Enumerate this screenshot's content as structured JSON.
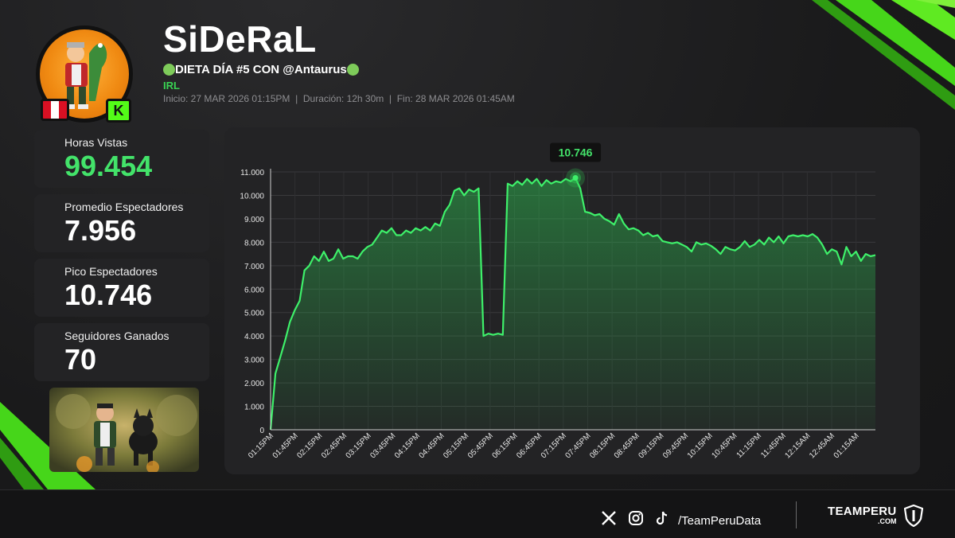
{
  "streamer": {
    "name": "SiDeRaL",
    "title": "DIETA DÍA #5 CON @Antaurus",
    "category": "IRL",
    "meta": "Inicio: 27 MAR 2026 01:15PM  |  Duración: 12h 30m  |  Fin: 28 MAR 2026 01:45AM",
    "flag": "peru-flag",
    "platform_icon": "kick-icon",
    "platform_letter": "K"
  },
  "stats": [
    {
      "label": "Horas Vistas",
      "value": "99.454",
      "highlight": true
    },
    {
      "label": "Promedio Espectadores",
      "value": "7.956",
      "highlight": false
    },
    {
      "label": "Pico Espectadores",
      "value": "10.746",
      "highlight": false
    },
    {
      "label": "Seguidores Ganados",
      "value": "70",
      "highlight": false
    }
  ],
  "colors": {
    "accent": "#43e36a",
    "line": "#3ef06a",
    "panel": "#232325",
    "background": "#1c1c1e",
    "brand_green": "#53fc18"
  },
  "chart_data": {
    "type": "area",
    "title": "",
    "xlabel": "",
    "ylabel": "",
    "ylim": [
      0,
      11000
    ],
    "yticks": [
      0,
      1000,
      2000,
      3000,
      4000,
      5000,
      6000,
      7000,
      8000,
      9000,
      10000,
      11000
    ],
    "ytick_labels": [
      "0",
      "1.000",
      "2.000",
      "3.000",
      "4.000",
      "5.000",
      "6.000",
      "7.000",
      "8.000",
      "9.000",
      "10.000",
      "11.000"
    ],
    "xtick_labels": [
      "01:15PM",
      "01:45PM",
      "02:15PM",
      "02:45PM",
      "03:15PM",
      "03:45PM",
      "04:15PM",
      "04:45PM",
      "05:15PM",
      "05:45PM",
      "06:15PM",
      "06:45PM",
      "07:15PM",
      "07:45PM",
      "08:15PM",
      "08:45PM",
      "09:15PM",
      "09:45PM",
      "10:15PM",
      "10:45PM",
      "11:15PM",
      "11:45PM",
      "12:15AM",
      "12:45AM",
      "01:15AM"
    ],
    "grid": true,
    "peak": {
      "index": 63,
      "label": "10.746"
    },
    "series": [
      {
        "values": [
          0,
          2400,
          3100,
          3800,
          4600,
          5100,
          5500,
          6800,
          7000,
          7400,
          7200,
          7600,
          7200,
          7300,
          7700,
          7300,
          7400,
          7400,
          7300,
          7600,
          7800,
          7900,
          8200,
          8500,
          8400,
          8600,
          8300,
          8300,
          8500,
          8400,
          8600,
          8500,
          8650,
          8500,
          8800,
          8700,
          9300,
          9600,
          10200,
          10300,
          10000,
          10250,
          10150,
          10300,
          4000,
          4100,
          4050,
          4100,
          4050,
          10500,
          10400,
          10600,
          10450,
          10700,
          10500,
          10700,
          10400,
          10650,
          10500,
          10600,
          10550,
          10700,
          10600,
          10746,
          10300,
          9300,
          9250,
          9150,
          9200,
          9000,
          8900,
          8750,
          9200,
          8800,
          8550,
          8600,
          8500,
          8300,
          8400,
          8250,
          8300,
          8050,
          8000,
          7950,
          8000,
          7900,
          7800,
          7600,
          8000,
          7900,
          7950,
          7850,
          7700,
          7500,
          7800,
          7700,
          7650,
          7800,
          8050,
          7800,
          7900,
          8100,
          7900,
          8200,
          8000,
          8250,
          7950,
          8250,
          8300,
          8250,
          8300,
          8250,
          8350,
          8200,
          7900,
          7500,
          7700,
          7600,
          7050,
          7800,
          7400,
          7600,
          7200,
          7500,
          7400,
          7450
        ]
      }
    ]
  },
  "footer": {
    "handle": "/TeamPeruData",
    "brand": "TEAMPERU",
    "brand_sub": ".COM",
    "socials": [
      "x-icon",
      "instagram-icon",
      "tiktok-icon"
    ]
  }
}
